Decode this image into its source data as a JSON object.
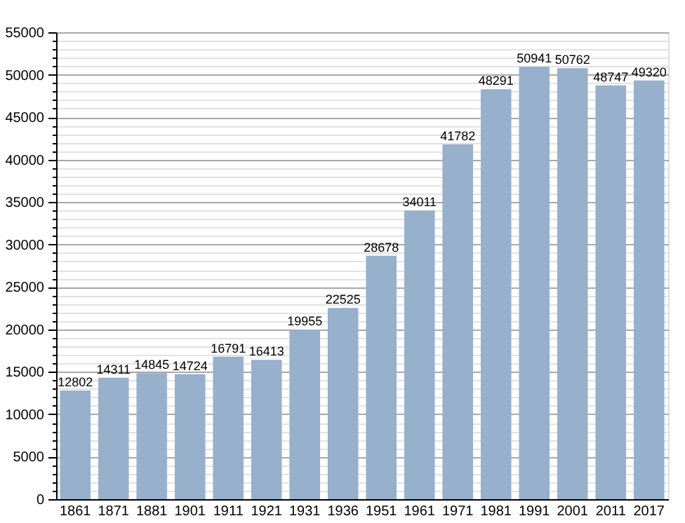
{
  "chart_data": {
    "type": "bar",
    "categories": [
      "1861",
      "1871",
      "1881",
      "1901",
      "1911",
      "1921",
      "1931",
      "1936",
      "1951",
      "1961",
      "1971",
      "1981",
      "1991",
      "2001",
      "2011",
      "2017"
    ],
    "values": [
      12802,
      14311,
      14845,
      14724,
      16791,
      16413,
      19955,
      22525,
      28678,
      34011,
      41782,
      48291,
      50941,
      50762,
      48747,
      49320
    ],
    "color": "#97b0cc",
    "ylim": [
      0,
      55000
    ],
    "yticks": [
      0,
      {
        "value": 1000,
        "label": null
      },
      {
        "value": 2000,
        "label": null
      },
      {
        "value": 3000,
        "label": null
      },
      {
        "value": 4000,
        "label": null
      },
      5000,
      {
        "value": 6000,
        "label": null
      },
      {
        "value": 7000,
        "label": null
      },
      {
        "value": 8000,
        "label": null
      },
      {
        "value": 9000,
        "label": null
      },
      10000,
      {
        "value": 11000,
        "label": null
      },
      {
        "value": 12000,
        "label": null
      },
      {
        "value": 13000,
        "label": null
      },
      {
        "value": 14000,
        "label": null
      },
      15000,
      {
        "value": 16000,
        "label": null
      },
      {
        "value": 17000,
        "label": null
      },
      {
        "value": 18000,
        "label": null
      },
      {
        "value": 19000,
        "label": null
      },
      20000,
      {
        "value": 21000,
        "label": null
      },
      {
        "value": 22000,
        "label": null
      },
      {
        "value": 23000,
        "label": null
      },
      {
        "value": 24000,
        "label": null
      },
      25000,
      {
        "value": 26000,
        "label": null
      },
      {
        "value": 27000,
        "label": null
      },
      {
        "value": 28000,
        "label": null
      },
      {
        "value": 29000,
        "label": null
      },
      30000,
      {
        "value": 31000,
        "label": null
      },
      {
        "value": 32000,
        "label": null
      },
      {
        "value": 33000,
        "label": null
      },
      {
        "value": 34000,
        "label": null
      },
      35000,
      {
        "value": 36000,
        "label": null
      },
      {
        "value": 37000,
        "label": null
      },
      {
        "value": 38000,
        "label": null
      },
      {
        "value": 39000,
        "label": null
      },
      40000,
      {
        "value": 41000,
        "label": null
      },
      {
        "value": 42000,
        "label": null
      },
      {
        "value": 43000,
        "label": null
      },
      {
        "value": 44000,
        "label": null
      },
      45000,
      {
        "value": 46000,
        "label": null
      },
      {
        "value": 47000,
        "label": null
      },
      {
        "value": 48000,
        "label": null
      },
      {
        "value": 49000,
        "label": null
      },
      50000,
      {
        "value": 51000,
        "label": null
      },
      {
        "value": 52000,
        "label": null
      },
      {
        "value": 53000,
        "label": null
      },
      {
        "value": 54000,
        "label": null
      },
      55000
    ],
    "grid": "y",
    "data_labels": true
  }
}
